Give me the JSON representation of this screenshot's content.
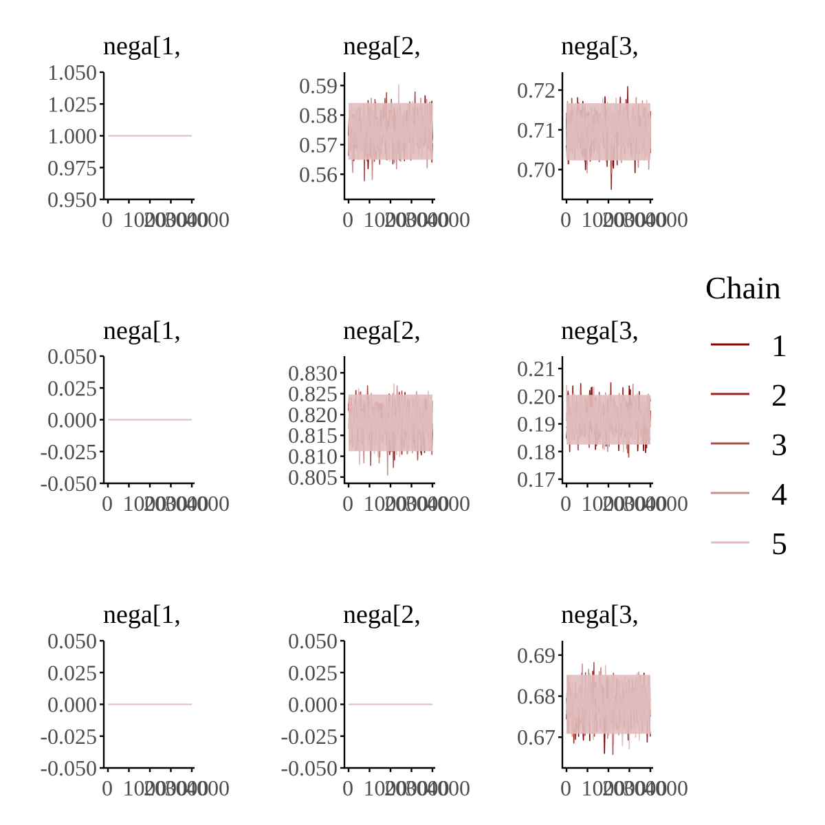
{
  "chart_data": {
    "type": "line",
    "legend": {
      "title": "Chain",
      "placement": "right",
      "items": [
        {
          "label": "1",
          "color": "#8b0000"
        },
        {
          "label": "2",
          "color": "#9b2323"
        },
        {
          "label": "3",
          "color": "#ad4b4b"
        },
        {
          "label": "4",
          "color": "#c98f8f"
        },
        {
          "label": "5",
          "color": "#e0bcbc"
        }
      ]
    },
    "x_ticks": [
      "0",
      "1000",
      "2000",
      "3000",
      "4000"
    ],
    "xlim": [
      0,
      4000
    ],
    "panels": [
      {
        "title": "nega[1,",
        "ylim": [
          0.95,
          1.05
        ],
        "yticks": [
          0.95,
          0.975,
          1.0,
          1.025,
          1.05
        ],
        "ytick_labels": [
          "0.950",
          "0.975",
          "1.000",
          "1.025",
          "1.050"
        ],
        "constant": 1.0
      },
      {
        "title": "nega[2,",
        "ylim": [
          0.5515,
          0.5945
        ],
        "yticks": [
          0.56,
          0.57,
          0.58,
          0.59
        ],
        "ytick_labels": [
          "0.56",
          "0.57",
          "0.58",
          "0.59"
        ],
        "mean": 0.5745,
        "sd": 0.0048,
        "min": 0.5535,
        "max": 0.5935
      },
      {
        "title": "nega[3,",
        "ylim": [
          0.6925,
          0.7245
        ],
        "yticks": [
          0.7,
          0.71,
          0.72
        ],
        "ytick_labels": [
          "0.70",
          "0.71",
          "0.72"
        ],
        "mean": 0.7095,
        "sd": 0.0036,
        "min": 0.6945,
        "max": 0.7235
      },
      {
        "title": "nega[1,",
        "ylim": [
          -0.05,
          0.05
        ],
        "yticks": [
          -0.05,
          -0.025,
          0.0,
          0.025,
          0.05
        ],
        "ytick_labels": [
          "-0.050",
          "-0.025",
          "0.000",
          "0.025",
          "0.050"
        ],
        "constant": 0.0
      },
      {
        "title": "nega[2,",
        "ylim": [
          0.8035,
          0.834
        ],
        "yticks": [
          0.805,
          0.81,
          0.815,
          0.82,
          0.825,
          0.83
        ],
        "ytick_labels": [
          "0.805",
          "0.810",
          "0.815",
          "0.820",
          "0.825",
          "0.830"
        ],
        "mean": 0.818,
        "sd": 0.0034,
        "min": 0.8055,
        "max": 0.8335
      },
      {
        "title": "nega[3,",
        "ylim": [
          0.1685,
          0.2145
        ],
        "yticks": [
          0.17,
          0.18,
          0.19,
          0.2,
          0.21
        ],
        "ytick_labels": [
          "0.17",
          "0.18",
          "0.19",
          "0.20",
          "0.21"
        ],
        "mean": 0.1915,
        "sd": 0.0045,
        "min": 0.1705,
        "max": 0.2125
      },
      {
        "title": "nega[1,",
        "ylim": [
          -0.05,
          0.05
        ],
        "yticks": [
          -0.05,
          -0.025,
          0.0,
          0.025,
          0.05
        ],
        "ytick_labels": [
          "-0.050",
          "-0.025",
          "0.000",
          "0.025",
          "0.050"
        ],
        "constant": 0.0
      },
      {
        "title": "nega[2,",
        "ylim": [
          -0.05,
          0.05
        ],
        "yticks": [
          -0.05,
          -0.025,
          0.0,
          0.025,
          0.05
        ],
        "ytick_labels": [
          "-0.050",
          "-0.025",
          "0.000",
          "0.025",
          "0.050"
        ],
        "constant": 0.0
      },
      {
        "title": "nega[3,",
        "ylim": [
          0.6625,
          0.6935
        ],
        "yticks": [
          0.67,
          0.68,
          0.69
        ],
        "ytick_labels": [
          "0.67",
          "0.68",
          "0.69"
        ],
        "mean": 0.678,
        "sd": 0.0036,
        "min": 0.6635,
        "max": 0.6925
      }
    ]
  }
}
